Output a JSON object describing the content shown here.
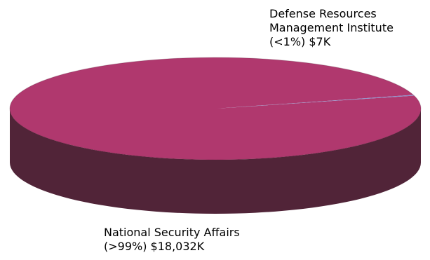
{
  "chart_data": {
    "type": "pie",
    "style": "3d",
    "title": "",
    "legend": "none",
    "slices": [
      {
        "name": "National Security Affairs",
        "value": 18032,
        "percent_label": "(>99%)",
        "value_label": "$18,032K",
        "color": "#b0386e",
        "side_color": "#512438"
      },
      {
        "name": "Defense Resources Management Institute",
        "value": 7,
        "percent_label": "(<1%)",
        "value_label": "$7K",
        "color": "#8d8dc9",
        "side_color": "#4b4b7a"
      }
    ]
  },
  "labels": {
    "large": {
      "line1": "National Security Affairs",
      "line2": "(>99%) $18,032K"
    },
    "small": {
      "line1": "Defense Resources",
      "line2": "Management Institute",
      "line3": "(<1%) $7K"
    }
  }
}
